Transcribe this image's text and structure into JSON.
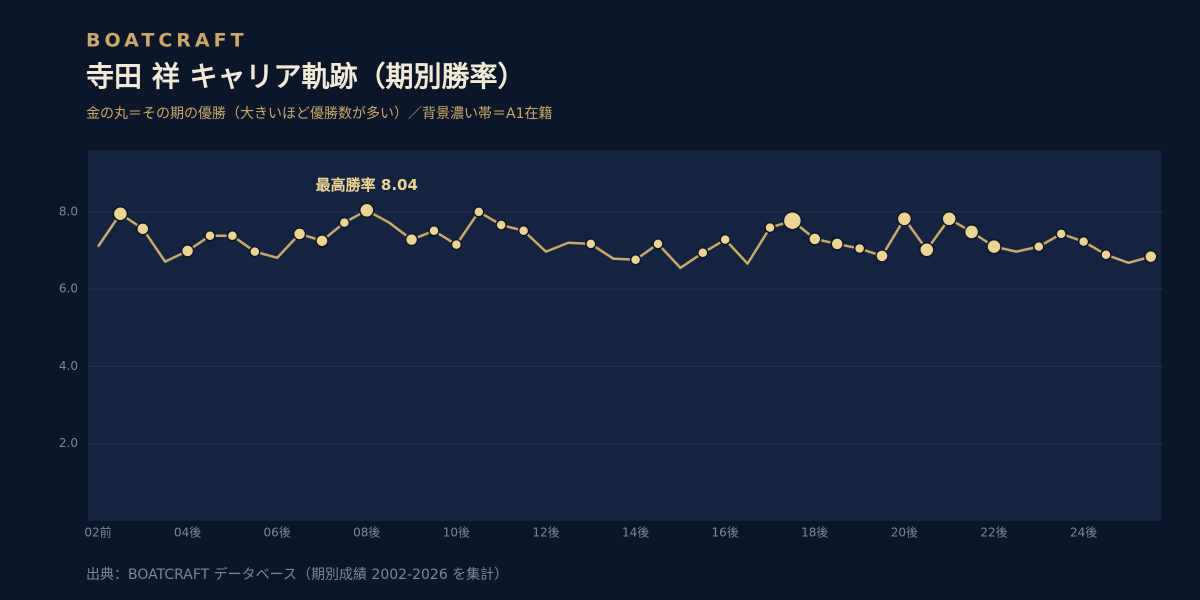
{
  "brand": "BOATCRAFT",
  "chart_data": {
    "type": "line",
    "title": "寺田 祥 キャリア軌跡（期別勝率）",
    "subtitle": "金の丸＝その期の優勝（大きいほど優勝数が多い）／背景濃い帯＝A1在籍",
    "annotation": "最高勝率 8.04",
    "categories": [
      "02前",
      null,
      null,
      null,
      "04後",
      null,
      null,
      null,
      "06後",
      null,
      null,
      null,
      "08後",
      null,
      null,
      null,
      "10後",
      null,
      null,
      null,
      "12後",
      null,
      null,
      null,
      "14後",
      null,
      null,
      null,
      "16後",
      null,
      null,
      null,
      "18後",
      null,
      null,
      null,
      "20後",
      null,
      null,
      null,
      "22後",
      null,
      null,
      null,
      "24後",
      null,
      null,
      null
    ],
    "values": [
      7.1,
      7.95,
      7.56,
      6.71,
      6.99,
      7.38,
      7.38,
      6.97,
      6.81,
      7.43,
      7.25,
      7.72,
      8.04,
      7.72,
      7.28,
      7.51,
      7.15,
      8.0,
      7.66,
      7.51,
      6.97,
      7.2,
      7.17,
      6.79,
      6.76,
      7.17,
      6.55,
      6.94,
      7.28,
      6.66,
      7.59,
      7.77,
      7.3,
      7.17,
      7.05,
      6.86,
      7.82,
      7.02,
      7.82,
      7.48,
      7.1,
      6.97,
      7.1,
      7.43,
      7.23,
      6.89,
      6.68,
      6.84
    ],
    "sizes": [
      null,
      3,
      2,
      null,
      2,
      1,
      1,
      1,
      null,
      2,
      2,
      1,
      3,
      null,
      2,
      1,
      1,
      1,
      1,
      1,
      null,
      null,
      1,
      null,
      1,
      1,
      null,
      1,
      1,
      null,
      1,
      5,
      2,
      2,
      1,
      2,
      3,
      3,
      3,
      3,
      3,
      null,
      1,
      1,
      1,
      1,
      null,
      2
    ],
    "color": "#c9a86a",
    "marker_color": "#ecd493",
    "ylim": [
      0,
      9.6
    ],
    "yticks": [
      {
        "value": 2,
        "label": "2.0"
      },
      {
        "value": 4,
        "label": "4.0"
      },
      {
        "value": 6,
        "label": "6.0"
      },
      {
        "value": 8,
        "label": "8.0"
      }
    ],
    "grid": true
  },
  "source": "出典：BOATCRAFT データベース（期別成績 2002-2026 を集計）"
}
